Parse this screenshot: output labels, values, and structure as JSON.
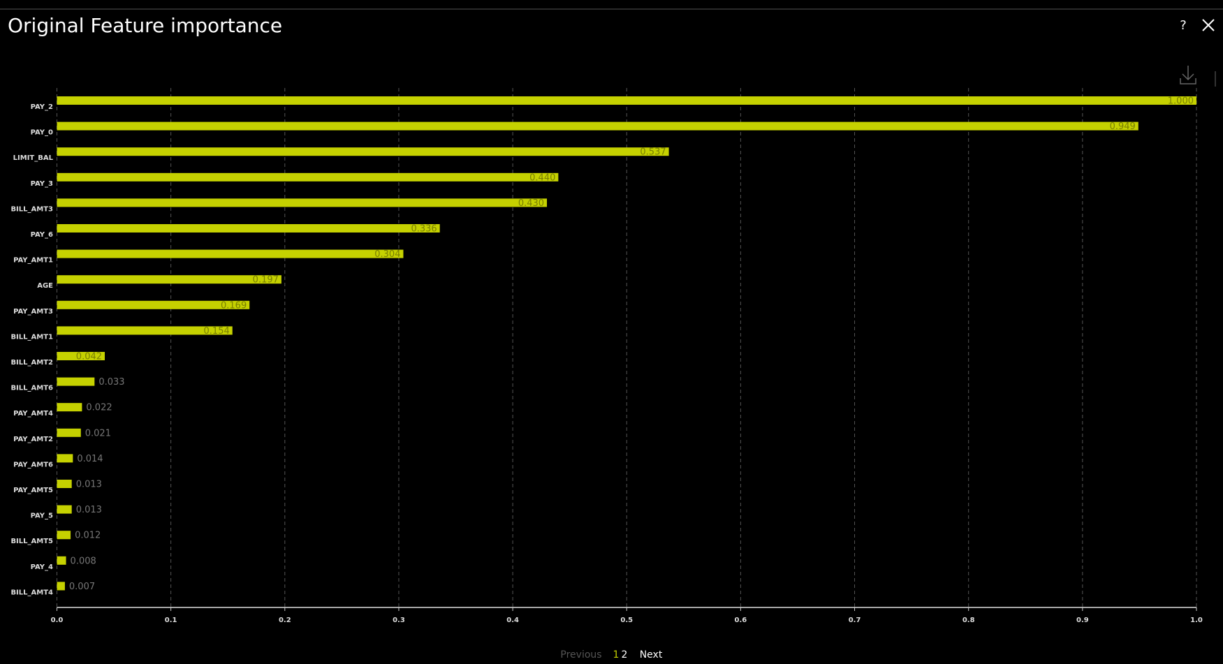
{
  "header": {
    "title": "Original Feature importance",
    "help": "?"
  },
  "chart_data": {
    "type": "bar",
    "orientation": "horizontal",
    "categories": [
      "PAY_2",
      "PAY_0",
      "LIMIT_BAL",
      "PAY_3",
      "BILL_AMT3",
      "PAY_6",
      "PAY_AMT1",
      "AGE",
      "PAY_AMT3",
      "BILL_AMT1",
      "BILL_AMT2",
      "BILL_AMT6",
      "PAY_AMT4",
      "PAY_AMT2",
      "PAY_AMT6",
      "PAY_AMT5",
      "PAY_5",
      "BILL_AMT5",
      "PAY_4",
      "BILL_AMT4"
    ],
    "values": [
      1.0,
      0.949,
      0.537,
      0.44,
      0.43,
      0.336,
      0.304,
      0.197,
      0.169,
      0.154,
      0.042,
      0.033,
      0.022,
      0.021,
      0.014,
      0.013,
      0.013,
      0.012,
      0.008,
      0.007
    ],
    "value_labels": [
      "1.000",
      "0.949",
      "0.537",
      "0.440",
      "0.430",
      "0.336",
      "0.304",
      "0.197",
      "0.169",
      "0.154",
      "0.042",
      "0.033",
      "0.022",
      "0.021",
      "0.014",
      "0.013",
      "0.013",
      "0.012",
      "0.008",
      "0.007"
    ],
    "color": "#c5d100",
    "xlim": [
      0,
      1
    ],
    "xticks": [
      {
        "value": 0,
        "label": "0.0"
      },
      0.1,
      0.2,
      0.3,
      0.4,
      0.5,
      0.6,
      0.7,
      0.8,
      0.9,
      {
        "value": 1,
        "label": "1.0"
      }
    ],
    "grid": true
  },
  "pagination": {
    "previous": "Previous",
    "pages": [
      "1",
      "2"
    ],
    "next": "Next"
  }
}
